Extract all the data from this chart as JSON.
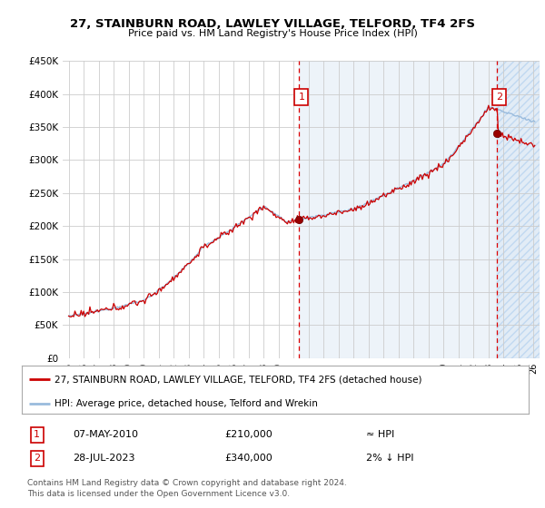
{
  "title": "27, STAINBURN ROAD, LAWLEY VILLAGE, TELFORD, TF4 2FS",
  "subtitle": "Price paid vs. HM Land Registry's House Price Index (HPI)",
  "ylim": [
    0,
    450000
  ],
  "yticks": [
    0,
    50000,
    100000,
    150000,
    200000,
    250000,
    300000,
    350000,
    400000,
    450000
  ],
  "ytick_labels": [
    "£0",
    "£50K",
    "£100K",
    "£150K",
    "£200K",
    "£250K",
    "£300K",
    "£350K",
    "£400K",
    "£450K"
  ],
  "xlim_start": 1994.6,
  "xlim_end": 2026.4,
  "fig_bg_color": "#ffffff",
  "plot_bg_color": "#ffffff",
  "shaded_bg_color": "#dce8f5",
  "grid_color": "#cccccc",
  "red_line_color": "#cc0000",
  "blue_line_color": "#99bbdd",
  "sale1_year": 2010.37,
  "sale1_price": 210000,
  "sale2_year": 2023.58,
  "sale2_price": 340000,
  "legend_line1": "27, STAINBURN ROAD, LAWLEY VILLAGE, TELFORD, TF4 2FS (detached house)",
  "legend_line2": "HPI: Average price, detached house, Telford and Wrekin",
  "sale1_date": "07-MAY-2010",
  "sale1_price_str": "£210,000",
  "sale1_hpi_rel": "≈ HPI",
  "sale2_date": "28-JUL-2023",
  "sale2_price_str": "£340,000",
  "sale2_hpi_rel": "2% ↓ HPI",
  "footer": "Contains HM Land Registry data © Crown copyright and database right 2024.\nThis data is licensed under the Open Government Licence v3.0."
}
